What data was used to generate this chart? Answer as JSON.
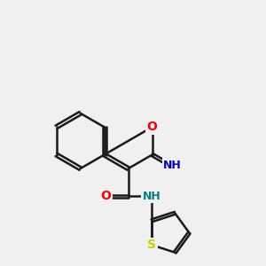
{
  "background_color": "#f0f0f0",
  "bond_color": "#1a1a1a",
  "bond_width": 1.8,
  "atom_colors": {
    "S": "#cccc00",
    "O": "#ff0000",
    "N_blue": "#0000cc",
    "NH_teal": "#008080",
    "C": "#1a1a1a"
  },
  "figsize": [
    3.0,
    3.0
  ],
  "dpi": 100
}
